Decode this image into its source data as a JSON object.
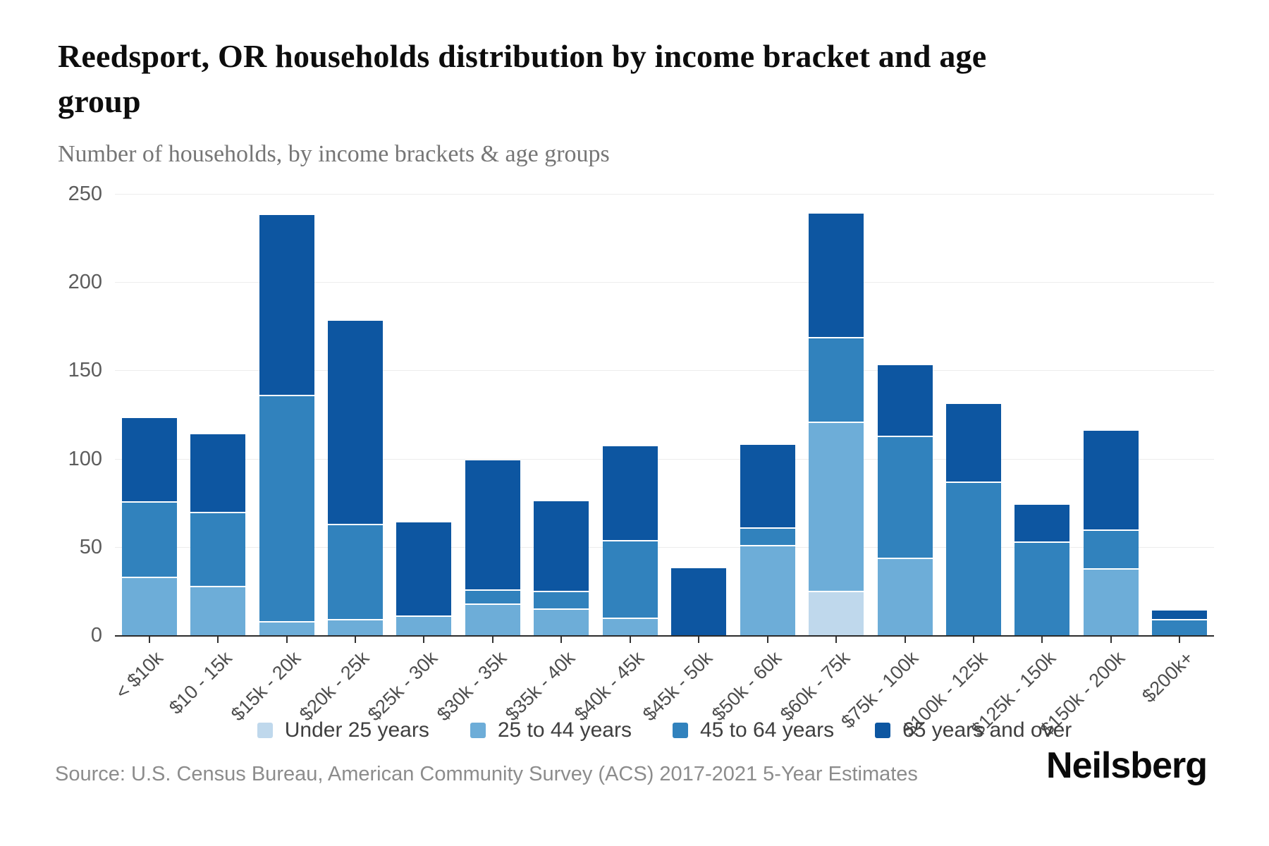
{
  "header": {
    "title": "Reedsport, OR households distribution by income bracket and age group",
    "title_lines": [
      "Reedsport, OR households distribution by income bracket and age",
      "group"
    ],
    "subtitle": "Number of households, by income brackets & age groups"
  },
  "footer": {
    "source": "Source: U.S. Census Bureau, American Community Survey (ACS) 2017-2021 5-Year Estimates",
    "brand": "Neilsberg"
  },
  "colors": {
    "under_25": "#bfd8ec",
    "age_25_44": "#6dadd8",
    "age_45_64": "#3182bd",
    "age_65_over": "#0d56a1",
    "gridline": "#ededed",
    "axis_line": "#2b2b2b"
  },
  "chart_data": {
    "type": "bar",
    "stacked": true,
    "title": "Reedsport, OR households distribution by income bracket and age group",
    "xlabel": "",
    "ylabel": "Number of households",
    "ylim": [
      0,
      250
    ],
    "yticks": [
      0,
      50,
      100,
      150,
      200,
      250
    ],
    "grid": true,
    "legend_position": "bottom",
    "categories": [
      "< $10k",
      "$10 - 15k",
      "$15k - 20k",
      "$20k - 25k",
      "$25k - 30k",
      "$30k - 35k",
      "$35k - 40k",
      "$40k - 45k",
      "$45k - 50k",
      "$50k - 60k",
      "$60k - 75k",
      "$75k - 100k",
      "$100k - 125k",
      "$125k - 150k",
      "$150k - 200k",
      "$200k+"
    ],
    "series": [
      {
        "name": "Under 25 years",
        "color": "#bfd8ec",
        "values": [
          0,
          0,
          0,
          0,
          0,
          0,
          0,
          0,
          0,
          0,
          25,
          0,
          0,
          0,
          0,
          0
        ]
      },
      {
        "name": "25 to 44 years",
        "color": "#6dadd8",
        "values": [
          33,
          28,
          8,
          9,
          11,
          18,
          15,
          10,
          0,
          51,
          96,
          44,
          0,
          0,
          38,
          0
        ]
      },
      {
        "name": "45 to 64 years",
        "color": "#3182bd",
        "values": [
          43,
          42,
          128,
          54,
          0,
          8,
          10,
          44,
          0,
          10,
          48,
          69,
          87,
          53,
          22,
          9
        ]
      },
      {
        "name": "65 years and over",
        "color": "#0d56a1",
        "values": [
          47,
          44,
          102,
          115,
          53,
          73,
          51,
          53,
          38,
          47,
          70,
          40,
          44,
          21,
          56,
          5
        ]
      }
    ],
    "totals": [
      123,
      114,
      238,
      178,
      64,
      99,
      76,
      107,
      38,
      108,
      239,
      153,
      131,
      74,
      116,
      14
    ]
  }
}
